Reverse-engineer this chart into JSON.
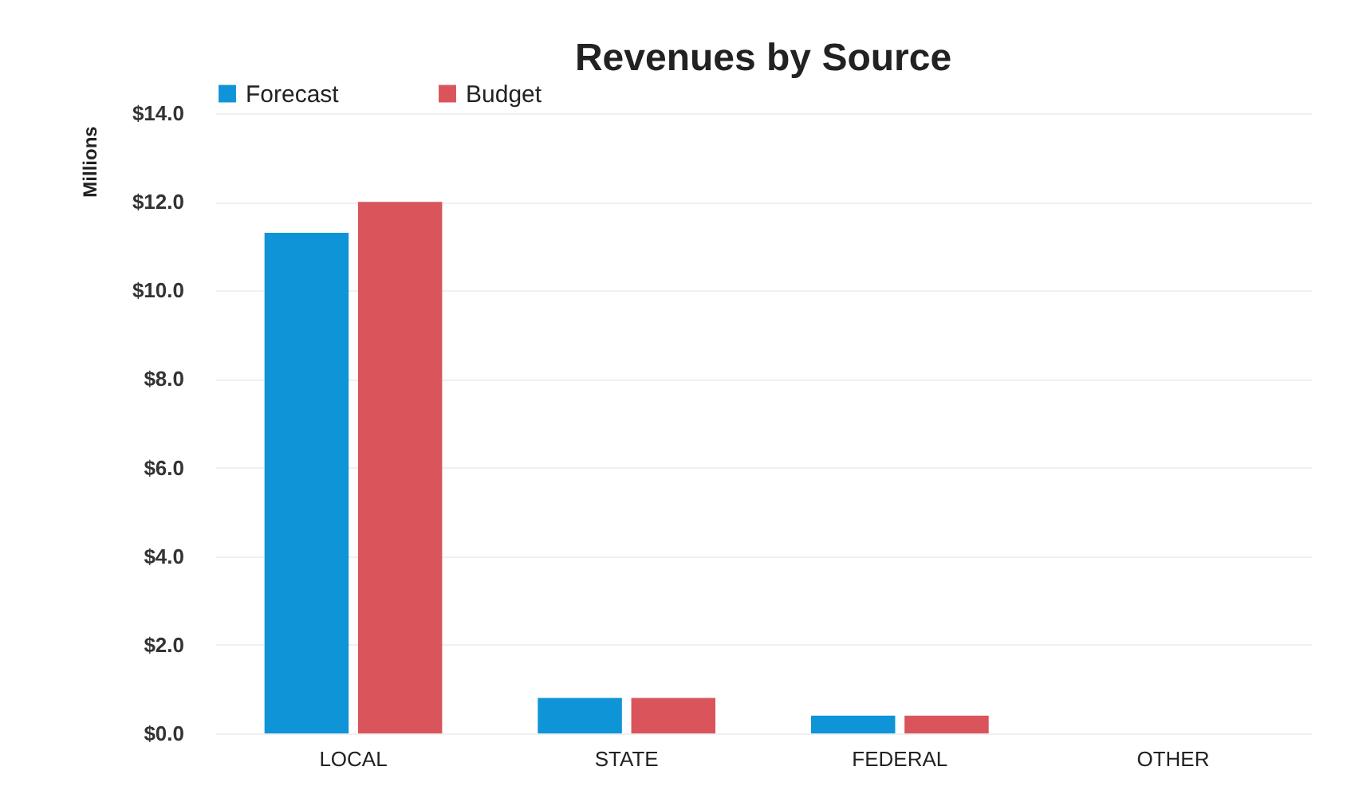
{
  "chart_data": {
    "type": "bar",
    "title": "Revenues by Source",
    "ylabel": "Millions",
    "categories": [
      "LOCAL",
      "STATE",
      "FEDERAL",
      "OTHER"
    ],
    "series": [
      {
        "name": "Forecast",
        "color": "#0f94d8",
        "values": [
          11.3,
          0.8,
          0.4,
          0
        ]
      },
      {
        "name": "Budget",
        "color": "#d9545b",
        "values": [
          12.0,
          0.8,
          0.4,
          0
        ]
      }
    ],
    "ylim": [
      0,
      14
    ],
    "yticks": [
      {
        "value": 0,
        "label": "$0.0"
      },
      {
        "value": 2,
        "label": "$2.0"
      },
      {
        "value": 4,
        "label": "$4.0"
      },
      {
        "value": 6,
        "label": "$6.0"
      },
      {
        "value": 8,
        "label": "$8.0"
      },
      {
        "value": 10,
        "label": "$10.0"
      },
      {
        "value": 12,
        "label": "$12.0"
      },
      {
        "value": 14,
        "label": "$14.0"
      }
    ],
    "grid": "y",
    "legend": "top"
  }
}
